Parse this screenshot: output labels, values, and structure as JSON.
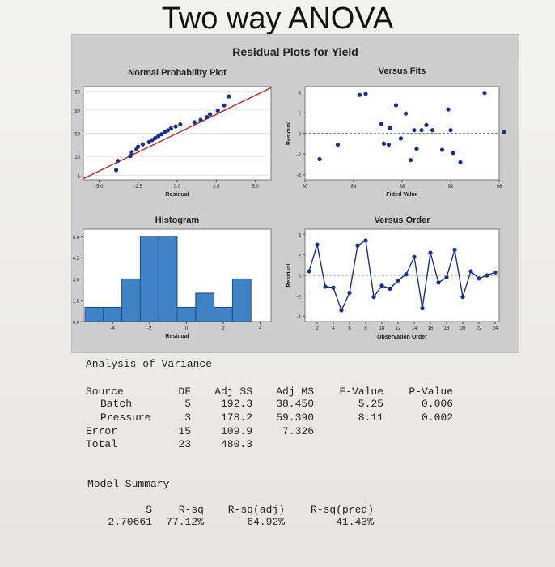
{
  "page": {
    "title": "Two way ANOVA"
  },
  "residual_plots": {
    "title": "Residual Plots for Yield",
    "normal_probability": {
      "title": "Normal Probability Plot",
      "xlabel": "Residual",
      "ylabel": "Percent",
      "xticks": [
        "-5.0",
        "-2.5",
        "0.0",
        "2.5",
        "5.0"
      ],
      "yticks": [
        "1",
        "10",
        "50",
        "90",
        "99"
      ]
    },
    "versus_fits": {
      "title": "Versus Fits",
      "xlabel": "Fitted Value",
      "ylabel": "Residual",
      "xticks": [
        "80",
        "84",
        "88",
        "92",
        "96"
      ],
      "yticks": [
        "-4",
        "-2",
        "0",
        "2",
        "4"
      ]
    },
    "histogram": {
      "title": "Histogram",
      "xlabel": "Residual",
      "ylabel": "Frequency",
      "xticks": [
        "-4",
        "-2",
        "0",
        "2",
        "4"
      ],
      "yticks": [
        "0.0",
        "1.5",
        "3.0",
        "4.5",
        "6.0"
      ]
    },
    "versus_order": {
      "title": "Versus Order",
      "xlabel": "Observation Order",
      "ylabel": "Residual",
      "xticks": [
        "2",
        "4",
        "6",
        "8",
        "10",
        "12",
        "14",
        "16",
        "18",
        "20",
        "22",
        "24"
      ],
      "yticks": [
        "-4",
        "-2",
        "0",
        "2",
        "4"
      ]
    }
  },
  "chart_data": [
    {
      "type": "scatter",
      "title": "Normal Probability Plot",
      "xlabel": "Residual",
      "ylabel": "Percent",
      "xlim": [
        -6,
        6
      ],
      "yscale": "normal",
      "x": [
        -3.9,
        -3.8,
        -3.0,
        -2.9,
        -2.6,
        -2.5,
        -2.2,
        -1.8,
        -1.6,
        -1.4,
        -1.2,
        -1.0,
        -0.8,
        -0.6,
        -0.4,
        -0.1,
        0.2,
        1.1,
        1.5,
        1.9,
        2.1,
        2.6,
        3.0,
        3.3
      ],
      "y": [
        2.1,
        6.3,
        10.4,
        14.6,
        18.8,
        22.9,
        27.1,
        31.3,
        35.4,
        39.6,
        43.8,
        47.9,
        52.1,
        56.3,
        60.4,
        64.6,
        68.8,
        72.9,
        77.1,
        81.3,
        85.4,
        89.6,
        93.8,
        97.9
      ],
      "fit_line": {
        "x": [
          -6,
          6
        ],
        "y": [
          0.6,
          99.4
        ]
      }
    },
    {
      "type": "scatter",
      "title": "Versus Fits",
      "xlabel": "Fitted Value",
      "ylabel": "Residual",
      "xlim": [
        80,
        96
      ],
      "ylim": [
        -4.5,
        4.5
      ],
      "x": [
        81.2,
        82.7,
        84.5,
        85.0,
        86.3,
        86.5,
        86.9,
        87.0,
        87.5,
        87.9,
        88.3,
        88.7,
        89.0,
        89.2,
        89.6,
        90.0,
        90.5,
        91.3,
        91.8,
        92.0,
        92.2,
        92.8,
        94.8,
        96.4
      ],
      "y": [
        -2.5,
        -1.1,
        3.7,
        3.8,
        0.9,
        -1.0,
        -1.1,
        0.5,
        2.7,
        -0.5,
        1.9,
        -2.6,
        0.3,
        -1.5,
        0.3,
        0.8,
        0.3,
        -1.6,
        2.3,
        0.3,
        -1.9,
        -2.8,
        3.9,
        0.1
      ]
    },
    {
      "type": "bar",
      "title": "Histogram",
      "xlabel": "Residual",
      "ylabel": "Frequency",
      "ylim": [
        0,
        6.5
      ],
      "categories": [
        "-5",
        "-4",
        "-3",
        "-2",
        "-1",
        "0",
        "1",
        "2",
        "3",
        "4"
      ],
      "values": [
        1,
        1,
        3,
        6,
        6,
        1,
        2,
        1,
        3,
        0
      ]
    },
    {
      "type": "line",
      "title": "Versus Order",
      "xlabel": "Observation Order",
      "ylabel": "Residual",
      "xlim": [
        0.5,
        24.5
      ],
      "ylim": [
        -4.5,
        4.5
      ],
      "x": [
        1,
        2,
        3,
        4,
        5,
        6,
        7,
        8,
        9,
        10,
        11,
        12,
        13,
        14,
        15,
        16,
        17,
        18,
        19,
        20,
        21,
        22,
        23,
        24
      ],
      "values": [
        0.4,
        3.0,
        -1.1,
        -1.2,
        -3.4,
        -1.7,
        2.9,
        3.4,
        -2.1,
        -1.0,
        -1.3,
        -0.5,
        0.1,
        1.8,
        -3.2,
        2.2,
        -0.7,
        -0.2,
        2.5,
        -2.1,
        0.4,
        -0.3,
        0.0,
        0.3
      ]
    }
  ],
  "anova": {
    "heading": "Analysis of Variance",
    "headers": [
      "Source",
      "DF",
      "Adj SS",
      "Adj MS",
      "F-Value",
      "P-Value"
    ],
    "rows": [
      {
        "source": "Batch",
        "df": "5",
        "adj_ss": "192.3",
        "adj_ms": "38.450",
        "f": "5.25",
        "p": "0.006"
      },
      {
        "source": "Pressure",
        "df": "3",
        "adj_ss": "178.2",
        "adj_ms": "59.390",
        "f": "8.11",
        "p": "0.002"
      },
      {
        "source": "Error",
        "df": "15",
        "adj_ss": "109.9",
        "adj_ms": "7.326",
        "f": "",
        "p": ""
      },
      {
        "source": "Total",
        "df": "23",
        "adj_ss": "480.3",
        "adj_ms": "",
        "f": "",
        "p": ""
      }
    ]
  },
  "model_summary": {
    "heading": "Model Summary",
    "headers": [
      "S",
      "R-sq",
      "R-sq(adj)",
      "R-sq(pred)"
    ],
    "values": [
      "2.70661",
      "77.12%",
      "64.92%",
      "41.43%"
    ]
  },
  "colors": {
    "point": "#1a2f8f",
    "fit_line": "#c21f1f",
    "bar": "#3f82c6",
    "panel_bg": "#cdcdcd",
    "plot_bg": "#ffffff"
  }
}
